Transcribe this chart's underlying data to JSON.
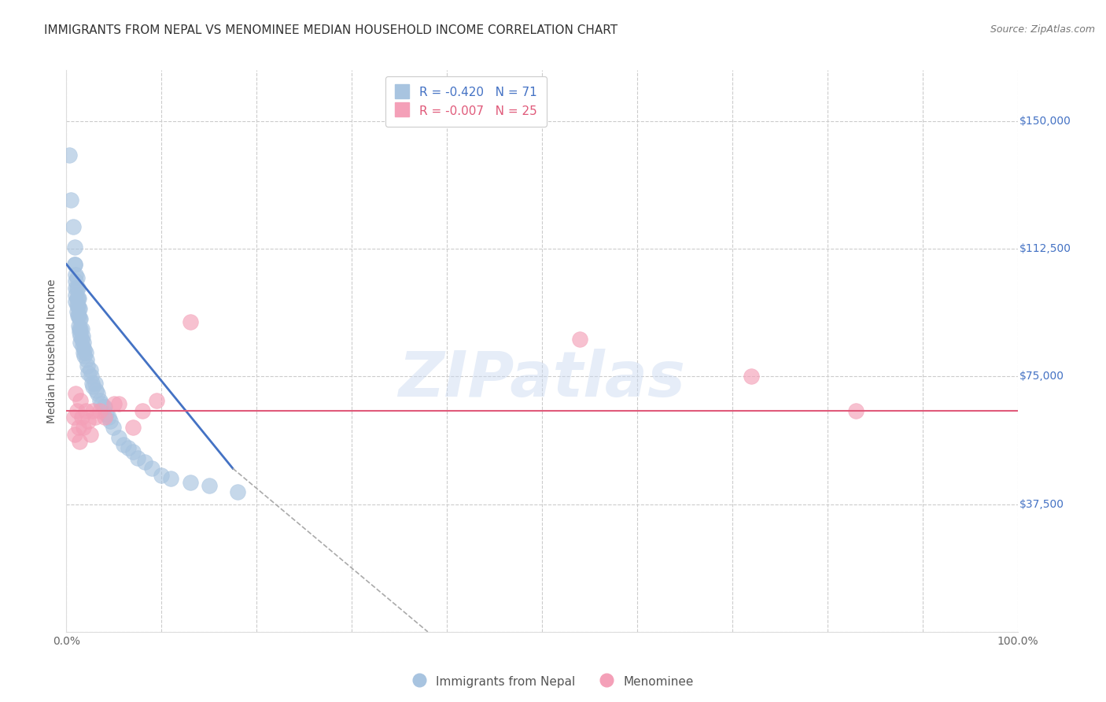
{
  "title": "IMMIGRANTS FROM NEPAL VS MENOMINEE MEDIAN HOUSEHOLD INCOME CORRELATION CHART",
  "source": "Source: ZipAtlas.com",
  "ylabel": "Median Household Income",
  "xlim": [
    0.0,
    1.0
  ],
  "ylim": [
    0,
    165000
  ],
  "yticks": [
    0,
    37500,
    75000,
    112500,
    150000
  ],
  "background_color": "#ffffff",
  "grid_color": "#cccccc",
  "watermark": "ZIPatlas",
  "blue_scatter": {
    "x": [
      0.003,
      0.005,
      0.007,
      0.009,
      0.009,
      0.009,
      0.01,
      0.01,
      0.01,
      0.01,
      0.01,
      0.011,
      0.011,
      0.011,
      0.011,
      0.011,
      0.012,
      0.012,
      0.012,
      0.012,
      0.013,
      0.013,
      0.013,
      0.013,
      0.014,
      0.014,
      0.014,
      0.014,
      0.015,
      0.015,
      0.015,
      0.015,
      0.016,
      0.016,
      0.017,
      0.017,
      0.018,
      0.018,
      0.019,
      0.019,
      0.02,
      0.021,
      0.022,
      0.023,
      0.025,
      0.026,
      0.027,
      0.028,
      0.03,
      0.031,
      0.033,
      0.035,
      0.037,
      0.039,
      0.04,
      0.042,
      0.044,
      0.046,
      0.049,
      0.055,
      0.06,
      0.065,
      0.07,
      0.075,
      0.082,
      0.09,
      0.1,
      0.11,
      0.13,
      0.15,
      0.18
    ],
    "y": [
      140000,
      127000,
      119000,
      113000,
      108000,
      108000,
      105000,
      103000,
      101000,
      99000,
      97000,
      104000,
      101000,
      98000,
      96000,
      94000,
      101000,
      98000,
      96000,
      93000,
      98000,
      95000,
      93000,
      90000,
      95000,
      92000,
      89000,
      88000,
      92000,
      89000,
      87000,
      85000,
      89000,
      86000,
      87000,
      84000,
      85000,
      82000,
      83000,
      81000,
      82000,
      80000,
      78000,
      76000,
      77000,
      75000,
      73000,
      72000,
      73000,
      71000,
      70000,
      68000,
      67000,
      66000,
      66000,
      64000,
      63000,
      62000,
      60000,
      57000,
      55000,
      54000,
      53000,
      51000,
      50000,
      48000,
      46000,
      45000,
      44000,
      43000,
      41000
    ]
  },
  "pink_scatter": {
    "x": [
      0.008,
      0.009,
      0.01,
      0.011,
      0.013,
      0.014,
      0.015,
      0.016,
      0.018,
      0.02,
      0.023,
      0.025,
      0.028,
      0.03,
      0.035,
      0.04,
      0.05,
      0.055,
      0.07,
      0.08,
      0.095,
      0.13,
      0.54,
      0.72,
      0.83
    ],
    "y": [
      63000,
      58000,
      70000,
      65000,
      60000,
      56000,
      68000,
      63000,
      60000,
      65000,
      62000,
      58000,
      65000,
      63000,
      65000,
      63000,
      67000,
      67000,
      60000,
      65000,
      68000,
      91000,
      86000,
      75000,
      65000
    ]
  },
  "blue_line_x": [
    0.0,
    0.175
  ],
  "blue_line_y": [
    108000,
    48000
  ],
  "blue_dashed_line_x": [
    0.175,
    0.38
  ],
  "blue_dashed_line_y": [
    48000,
    0
  ],
  "pink_line_y": 65000,
  "blue_line_color": "#4472c4",
  "pink_line_color": "#e05a7a",
  "scatter_blue_color": "#a8c4e0",
  "scatter_pink_color": "#f4a0b8",
  "title_fontsize": 11,
  "axis_label_fontsize": 10,
  "tick_fontsize": 10,
  "legend_fontsize": 11,
  "legend_top_label1": "R = -0.420   N = 71",
  "legend_top_label2": "R = -0.007   N = 25",
  "legend_bottom_label1": "Immigrants from Nepal",
  "legend_bottom_label2": "Menominee"
}
